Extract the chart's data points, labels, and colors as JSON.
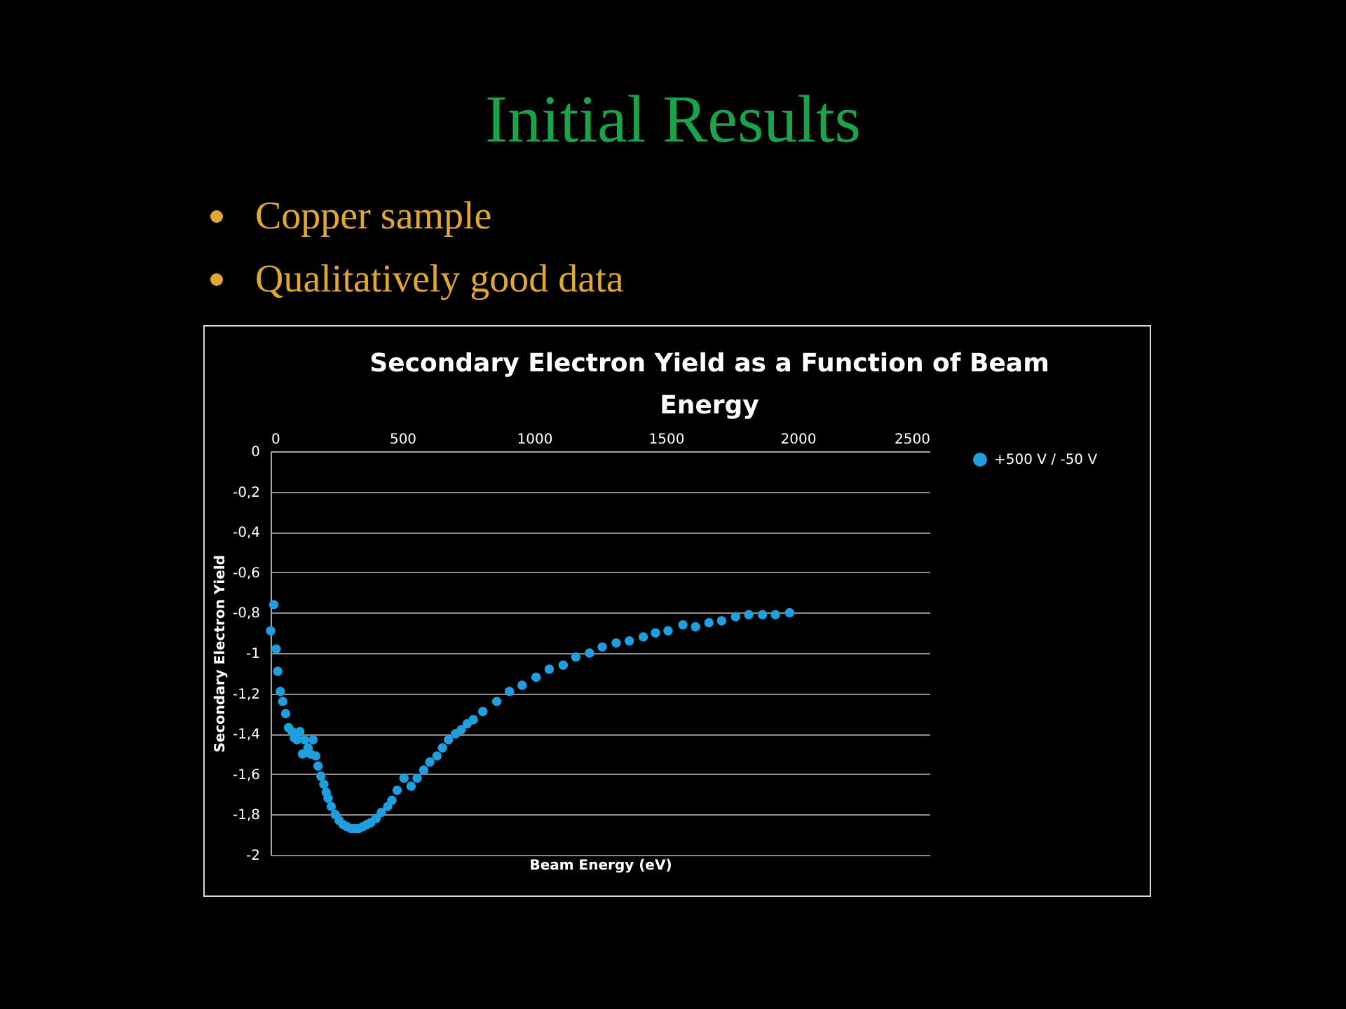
{
  "chart_data": {
    "type": "scatter",
    "title": "Initial Results",
    "subtitle": "Secondary Electron Yield as a Function of Beam Energy",
    "xlabel": "Beam Energy (eV)",
    "ylabel": "Secondary Electron Yield",
    "annotations": [
      "Copper sample",
      "Qualitatively good data"
    ],
    "xlim": [
      0,
      2500
    ],
    "xticks": [
      0,
      500,
      1000,
      1500,
      2000,
      2500
    ],
    "ylim": [
      -2,
      0
    ],
    "yticks": [
      0,
      {
        "value": -0.2,
        "label": "-0,2"
      },
      {
        "value": -0.4,
        "label": "-0,4"
      },
      {
        "value": -0.6,
        "label": "-0,6"
      },
      {
        "value": -0.8,
        "label": "-0,8"
      },
      -1,
      {
        "value": -1.2,
        "label": "-1,2"
      },
      {
        "value": -1.4,
        "label": "-1,4"
      },
      {
        "value": -1.6,
        "label": "-1,6"
      },
      {
        "value": -1.8,
        "label": "-1,8"
      },
      -2
    ],
    "grid": "y",
    "legend": "right",
    "marker": "circle",
    "series": [
      {
        "name": "+500 V / -50 V",
        "color": "#1f9ee0",
        "x": [
          0,
          12,
          21,
          27,
          37,
          46,
          57,
          68,
          82,
          90,
          100,
          111,
          121,
          129,
          142,
          151,
          161,
          171,
          180,
          191,
          202,
          211,
          218,
          230,
          245,
          260,
          275,
          290,
          305,
          320,
          335,
          350,
          365,
          380,
          400,
          420,
          444,
          460,
          480,
          506,
          533,
          556,
          581,
          604,
          631,
          652,
          675,
          702,
          723,
          746,
          769,
          805,
          858,
          906,
          954,
          1007,
          1057,
          1110,
          1158,
          1210,
          1258,
          1311,
          1361,
          1414,
          1460,
          1508,
          1564,
          1612,
          1663,
          1711,
          1764,
          1814,
          1866,
          1915,
          1969
        ],
        "values": [
          -0.89,
          -0.76,
          -0.98,
          -1.09,
          -1.19,
          -1.24,
          -1.3,
          -1.37,
          -1.39,
          -1.42,
          -1.43,
          -1.39,
          -1.5,
          -1.43,
          -1.47,
          -1.5,
          -1.43,
          -1.51,
          -1.56,
          -1.61,
          -1.65,
          -1.69,
          -1.72,
          -1.76,
          -1.8,
          -1.83,
          -1.85,
          -1.86,
          -1.87,
          -1.87,
          -1.87,
          -1.86,
          -1.85,
          -1.84,
          -1.82,
          -1.79,
          -1.76,
          -1.73,
          -1.68,
          -1.62,
          -1.66,
          -1.62,
          -1.58,
          -1.54,
          -1.51,
          -1.47,
          -1.43,
          -1.4,
          -1.38,
          -1.35,
          -1.33,
          -1.29,
          -1.24,
          -1.19,
          -1.16,
          -1.12,
          -1.08,
          -1.06,
          -1.02,
          -1,
          -0.97,
          -0.95,
          -0.94,
          -0.92,
          -0.9,
          -0.89,
          -0.86,
          -0.87,
          -0.85,
          -0.84,
          -0.82,
          -0.81,
          -0.81,
          -0.81,
          -0.8
        ]
      }
    ]
  }
}
